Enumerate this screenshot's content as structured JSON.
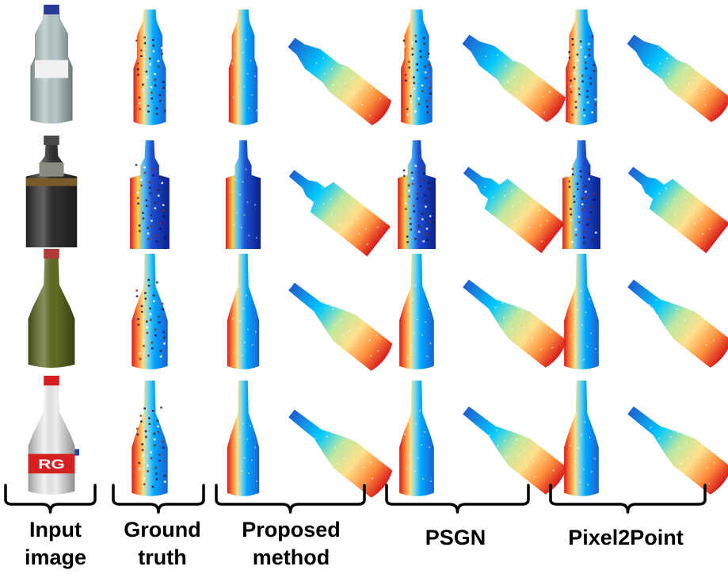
{
  "figure": {
    "columns": [
      {
        "id": "input",
        "label_line1": "Input",
        "label_line2": "image"
      },
      {
        "id": "gt",
        "label_line1": "Ground",
        "label_line2": "truth"
      },
      {
        "id": "proposed",
        "label_line1": "Proposed",
        "label_line2": "method"
      },
      {
        "id": "psgn",
        "label_line1": "PSGN",
        "label_line2": ""
      },
      {
        "id": "pixel2point",
        "label_line1": "Pixel2Point",
        "label_line2": ""
      }
    ],
    "rows": [
      {
        "name": "plastic-water-bottle",
        "body_color": "#b8c8c8",
        "cap_color": "#2a3c9a",
        "label_band_color": "#f1f1f1"
      },
      {
        "name": "dark-square-bottle",
        "body_color": "#2e2e2e",
        "cap_color": "#4a4a4a",
        "label_band_color": "#7a5a2a"
      },
      {
        "name": "green-wine-bottle",
        "body_color": "#5f6b22",
        "cap_color": "#b03a3a",
        "label_band_color": "#5f6b22"
      },
      {
        "name": "white-bottle",
        "body_color": "#eeeeee",
        "cap_color": "#d42020",
        "label_band_color": "#d42020"
      }
    ],
    "label_band_text": "RG",
    "palette": [
      "#d7191c",
      "#fd8d3c",
      "#fee08b",
      "#a6d96a",
      "#1a9850",
      "#00c8ff",
      "#2b83ba",
      "#1f3fbf"
    ]
  }
}
